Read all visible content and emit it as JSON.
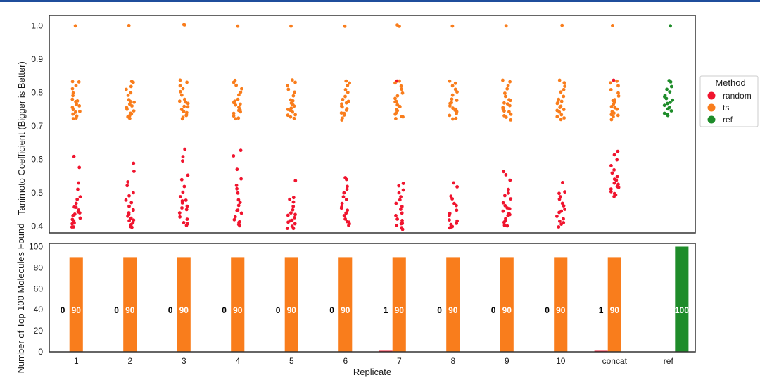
{
  "chart_data": [
    {
      "type": "scatter",
      "subtype": "stripplot",
      "title": "",
      "xlabel": "",
      "ylabel": "Tanimoto Coefficient (Bigger is Better)",
      "ylim": [
        0.38,
        1.03
      ],
      "yticks": [
        "0.4",
        "0.5",
        "0.6",
        "0.7",
        "0.8",
        "0.9",
        "1.0"
      ],
      "categories": [
        "1",
        "2",
        "3",
        "4",
        "5",
        "6",
        "7",
        "8",
        "9",
        "10",
        "concat",
        "ref"
      ],
      "grid": false,
      "legend": {
        "title": "Method",
        "position": "right",
        "entries": [
          {
            "name": "random",
            "color": "#f0142e"
          },
          {
            "name": "ts",
            "color": "#f97d1c"
          },
          {
            "name": "ref",
            "color": "#1e8c2a"
          }
        ]
      },
      "series": [
        {
          "name": "random",
          "color": "#f0142e",
          "points_by_category": [
            [
              0.395,
              0.4,
              0.405,
              0.41,
              0.415,
              0.42,
              0.425,
              0.43,
              0.435,
              0.44,
              0.445,
              0.45,
              0.455,
              0.46,
              0.47,
              0.48,
              0.49,
              0.51,
              0.53,
              0.575,
              0.61
            ],
            [
              0.395,
              0.4,
              0.405,
              0.41,
              0.415,
              0.42,
              0.425,
              0.43,
              0.435,
              0.44,
              0.445,
              0.45,
              0.46,
              0.47,
              0.48,
              0.49,
              0.5,
              0.52,
              0.535,
              0.565,
              0.59
            ],
            [
              0.4,
              0.405,
              0.41,
              0.42,
              0.43,
              0.44,
              0.45,
              0.455,
              0.46,
              0.47,
              0.475,
              0.48,
              0.49,
              0.5,
              0.52,
              0.54,
              0.555,
              0.595,
              0.61,
              0.63
            ],
            [
              0.4,
              0.405,
              0.41,
              0.415,
              0.42,
              0.43,
              0.44,
              0.445,
              0.45,
              0.46,
              0.47,
              0.48,
              0.5,
              0.51,
              0.52,
              0.54,
              0.57,
              0.61,
              0.625
            ],
            [
              0.392,
              0.395,
              0.4,
              0.405,
              0.41,
              0.415,
              0.42,
              0.425,
              0.43,
              0.435,
              0.44,
              0.45,
              0.46,
              0.47,
              0.48,
              0.485,
              0.535
            ],
            [
              0.4,
              0.405,
              0.41,
              0.415,
              0.42,
              0.43,
              0.44,
              0.45,
              0.455,
              0.46,
              0.47,
              0.48,
              0.49,
              0.5,
              0.51,
              0.52,
              0.54,
              0.545
            ],
            [
              0.393,
              0.397,
              0.4,
              0.405,
              0.41,
              0.415,
              0.42,
              0.43,
              0.44,
              0.45,
              0.46,
              0.47,
              0.48,
              0.49,
              0.5,
              0.51,
              0.52,
              0.53,
              0.835
            ],
            [
              0.393,
              0.397,
              0.4,
              0.405,
              0.41,
              0.415,
              0.42,
              0.43,
              0.44,
              0.45,
              0.46,
              0.47,
              0.48,
              0.49,
              0.52,
              0.53
            ],
            [
              0.4,
              0.405,
              0.41,
              0.415,
              0.42,
              0.43,
              0.435,
              0.44,
              0.445,
              0.45,
              0.455,
              0.46,
              0.47,
              0.48,
              0.49,
              0.5,
              0.51,
              0.54,
              0.555,
              0.565
            ],
            [
              0.4,
              0.405,
              0.41,
              0.415,
              0.42,
              0.43,
              0.44,
              0.445,
              0.45,
              0.46,
              0.47,
              0.48,
              0.49,
              0.5,
              0.505,
              0.53
            ],
            [
              0.49,
              0.495,
              0.5,
              0.505,
              0.51,
              0.515,
              0.52,
              0.525,
              0.53,
              0.535,
              0.54,
              0.55,
              0.56,
              0.57,
              0.58,
              0.6,
              0.615,
              0.625,
              0.835
            ],
            []
          ]
        },
        {
          "name": "ts",
          "color": "#f97d1c",
          "points_by_category": [
            [
              0.72,
              0.725,
              0.73,
              0.735,
              0.74,
              0.745,
              0.75,
              0.755,
              0.76,
              0.765,
              0.77,
              0.775,
              0.78,
              0.79,
              0.8,
              0.81,
              0.82,
              0.83,
              0.835,
              1.0
            ],
            [
              0.72,
              0.725,
              0.73,
              0.735,
              0.74,
              0.745,
              0.75,
              0.755,
              0.76,
              0.765,
              0.77,
              0.775,
              0.78,
              0.79,
              0.8,
              0.81,
              0.82,
              0.83,
              0.835,
              1.0
            ],
            [
              0.72,
              0.725,
              0.73,
              0.735,
              0.74,
              0.745,
              0.75,
              0.755,
              0.76,
              0.765,
              0.77,
              0.775,
              0.78,
              0.79,
              0.8,
              0.81,
              0.82,
              0.83,
              0.835,
              1.0,
              1.0
            ],
            [
              0.72,
              0.725,
              0.73,
              0.735,
              0.74,
              0.745,
              0.75,
              0.755,
              0.76,
              0.765,
              0.77,
              0.775,
              0.78,
              0.79,
              0.8,
              0.81,
              0.82,
              0.83,
              0.835,
              1.0
            ],
            [
              0.72,
              0.725,
              0.73,
              0.735,
              0.74,
              0.745,
              0.75,
              0.755,
              0.76,
              0.765,
              0.77,
              0.775,
              0.78,
              0.79,
              0.8,
              0.81,
              0.82,
              0.83,
              0.835,
              1.0
            ],
            [
              0.72,
              0.725,
              0.73,
              0.735,
              0.74,
              0.745,
              0.75,
              0.755,
              0.76,
              0.765,
              0.77,
              0.775,
              0.78,
              0.79,
              0.8,
              0.81,
              0.82,
              0.83,
              0.835,
              1.0
            ],
            [
              0.72,
              0.725,
              0.73,
              0.735,
              0.74,
              0.745,
              0.75,
              0.755,
              0.76,
              0.765,
              0.77,
              0.775,
              0.78,
              0.79,
              0.8,
              0.81,
              0.82,
              0.83,
              0.835,
              1.0,
              1.0
            ],
            [
              0.72,
              0.725,
              0.73,
              0.735,
              0.74,
              0.745,
              0.75,
              0.755,
              0.76,
              0.765,
              0.77,
              0.775,
              0.78,
              0.79,
              0.8,
              0.81,
              0.82,
              0.83,
              0.835,
              1.0
            ],
            [
              0.72,
              0.725,
              0.73,
              0.735,
              0.74,
              0.745,
              0.75,
              0.755,
              0.76,
              0.765,
              0.77,
              0.775,
              0.78,
              0.79,
              0.8,
              0.81,
              0.82,
              0.83,
              0.835,
              1.0
            ],
            [
              0.72,
              0.725,
              0.73,
              0.735,
              0.74,
              0.745,
              0.75,
              0.755,
              0.76,
              0.765,
              0.77,
              0.775,
              0.78,
              0.79,
              0.8,
              0.81,
              0.82,
              0.83,
              0.835,
              1.0
            ],
            [
              0.72,
              0.725,
              0.73,
              0.735,
              0.74,
              0.745,
              0.75,
              0.755,
              0.76,
              0.765,
              0.77,
              0.775,
              0.78,
              0.79,
              0.8,
              0.81,
              0.82,
              0.83,
              0.835,
              1.0
            ],
            []
          ]
        },
        {
          "name": "ref",
          "color": "#1e8c2a",
          "points_by_category": [
            [],
            [],
            [],
            [],
            [],
            [],
            [],
            [],
            [],
            [],
            [],
            [
              0.73,
              0.735,
              0.74,
              0.745,
              0.75,
              0.755,
              0.76,
              0.765,
              0.77,
              0.775,
              0.78,
              0.785,
              0.79,
              0.8,
              0.81,
              0.82,
              0.83,
              0.835,
              1.0
            ]
          ]
        }
      ]
    },
    {
      "type": "bar",
      "title": "",
      "xlabel": "Replicate",
      "ylabel": "Number of Top 100 Molecules Found",
      "ylim": [
        0,
        103
      ],
      "yticks": [
        "0",
        "20",
        "40",
        "60",
        "80",
        "100"
      ],
      "categories": [
        "1",
        "2",
        "3",
        "4",
        "5",
        "6",
        "7",
        "8",
        "9",
        "10",
        "concat",
        "ref"
      ],
      "grid": false,
      "series": [
        {
          "name": "random",
          "color": "#f0142e",
          "values": [
            0,
            0,
            0,
            0,
            0,
            0,
            1,
            0,
            0,
            0,
            1,
            0
          ]
        },
        {
          "name": "ts",
          "color": "#f97d1c",
          "values": [
            90,
            90,
            90,
            90,
            90,
            90,
            90,
            90,
            90,
            90,
            90,
            0
          ]
        },
        {
          "name": "ref",
          "color": "#1e8c2a",
          "values": [
            0,
            0,
            0,
            0,
            0,
            0,
            0,
            0,
            0,
            0,
            0,
            100
          ]
        }
      ],
      "data_labels": {
        "random": [
          "0",
          "0",
          "0",
          "0",
          "0",
          "0",
          "1",
          "0",
          "0",
          "0",
          "1",
          ""
        ],
        "ts": [
          "90",
          "90",
          "90",
          "90",
          "90",
          "90",
          "90",
          "90",
          "90",
          "90",
          "90",
          ""
        ],
        "ref": [
          "",
          "",
          "",
          "",
          "",
          "",
          "",
          "",
          "",
          "",
          "",
          "100"
        ]
      }
    }
  ]
}
